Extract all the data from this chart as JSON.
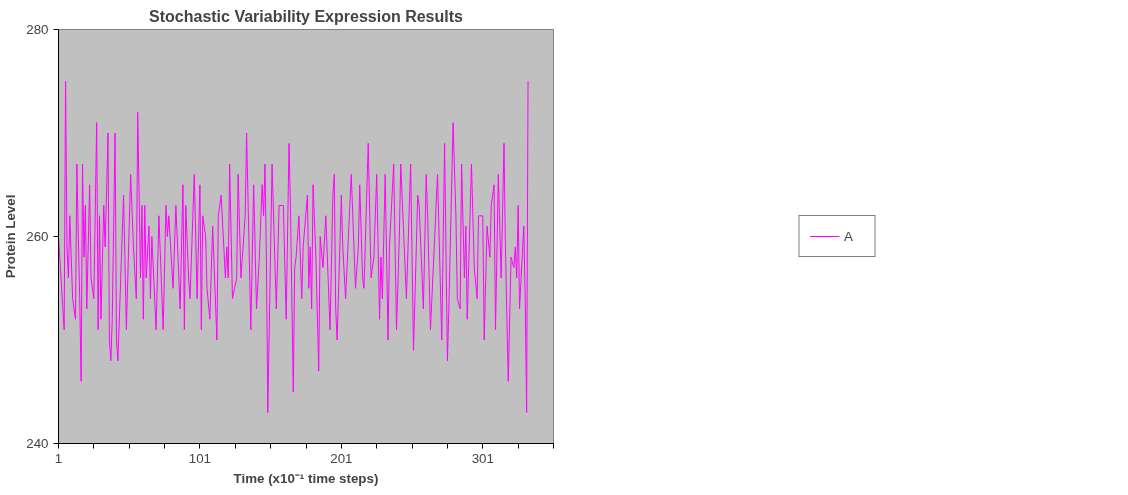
{
  "chart_data": {
    "type": "line",
    "title": "Stochastic Variability Expression Results",
    "xlabel": "Time (x10⁻¹ time steps)",
    "ylabel": "Protein Level",
    "x": [
      1,
      5,
      6,
      7,
      8,
      9,
      11,
      13,
      14,
      15,
      16,
      17,
      18,
      19,
      20,
      21,
      23,
      24,
      26,
      28,
      29,
      30,
      31,
      33,
      34,
      36,
      37,
      38,
      39,
      41,
      42,
      43,
      45,
      47,
      49,
      52,
      54,
      56,
      57,
      59,
      60,
      61,
      62,
      63,
      65,
      66,
      67,
      70,
      72,
      75,
      77,
      78,
      79,
      82,
      84,
      87,
      89,
      90,
      91,
      93,
      94,
      97,
      99,
      101,
      102,
      103,
      105,
      106,
      108,
      110,
      113,
      114,
      116,
      119,
      120,
      121,
      122,
      124,
      127,
      128,
      130,
      131,
      133,
      134,
      137,
      139,
      141,
      143,
      145,
      146,
      147,
      148,
      149,
      151,
      152,
      155,
      157,
      160,
      162,
      164,
      165,
      167,
      168,
      169,
      171,
      173,
      174,
      177,
      178,
      179,
      180,
      181,
      183,
      185,
      186,
      188,
      190,
      193,
      195,
      196,
      197,
      198,
      201,
      202,
      204,
      208,
      211,
      213,
      214,
      216,
      217,
      220,
      222,
      224,
      226,
      228,
      229,
      230,
      232,
      234,
      235,
      238,
      240,
      242,
      243,
      247,
      250,
      252,
      255,
      256,
      259,
      261,
      262,
      264,
      265,
      269,
      272,
      274,
      276,
      277,
      280,
      282,
      283,
      285,
      286,
      288,
      289,
      290,
      293,
      295,
      297,
      298,
      301,
      302,
      304,
      306,
      307,
      309,
      310,
      312,
      314,
      316,
      317,
      319,
      321,
      323,
      324,
      325,
      326,
      327,
      330,
      331,
      332,
      333
    ],
    "series": [
      {
        "name": "A",
        "color": "#ff00ff",
        "values": [
          260,
          251,
          275,
          259,
          256,
          262,
          254,
          252,
          267,
          260,
          254,
          246,
          267,
          258,
          263,
          253,
          265,
          256,
          254,
          271,
          251,
          262,
          252,
          263,
          259,
          270,
          250,
          248,
          252,
          270,
          250,
          248,
          256,
          264,
          251,
          266,
          259,
          254,
          272,
          256,
          263,
          252,
          263,
          256,
          261,
          254,
          260,
          251,
          262,
          251,
          263,
          260,
          262,
          255,
          263,
          253,
          265,
          251,
          263,
          256,
          254,
          266,
          254,
          265,
          251,
          262,
          260,
          255,
          252,
          261,
          250,
          262,
          264,
          256,
          259,
          256,
          267,
          254,
          256,
          266,
          256,
          258,
          262,
          270,
          251,
          265,
          253,
          258,
          265,
          262,
          267,
          258,
          243,
          259,
          267,
          253,
          263,
          263,
          252,
          269,
          263,
          245,
          257,
          258,
          262,
          254,
          259,
          264,
          255,
          259,
          253,
          265,
          258,
          247,
          260,
          257,
          262,
          251,
          264,
          266,
          253,
          250,
          264,
          259,
          254,
          266,
          255,
          259,
          265,
          256,
          255,
          269,
          256,
          258,
          266,
          252,
          258,
          254,
          266,
          250,
          259,
          267,
          251,
          260,
          267,
          254,
          267,
          249,
          264,
          263,
          253,
          266,
          262,
          251,
          254,
          266,
          250,
          269,
          248,
          253,
          271,
          262,
          254,
          253,
          267,
          256,
          261,
          252,
          267,
          257,
          254,
          262,
          262,
          250,
          261,
          258,
          263,
          265,
          251,
          266,
          256,
          269,
          259,
          246,
          258,
          257,
          259,
          256,
          263,
          253,
          261,
          254,
          243,
          275
        ]
      }
    ],
    "xlim": [
      1,
      351
    ],
    "xticks": [
      1,
      {
        "value": 26,
        "label": null
      },
      {
        "value": 51,
        "label": null
      },
      {
        "value": 76,
        "label": null
      },
      101,
      {
        "value": 126,
        "label": null
      },
      {
        "value": 151,
        "label": null
      },
      {
        "value": 176,
        "label": null
      },
      201,
      {
        "value": 226,
        "label": null
      },
      {
        "value": 251,
        "label": null
      },
      {
        "value": 276,
        "label": null
      },
      301,
      {
        "value": 326,
        "label": null
      },
      {
        "value": 351,
        "label": null
      }
    ],
    "ylim": [
      240,
      280
    ],
    "yticks": [
      240,
      260,
      280
    ],
    "legend": "right"
  }
}
